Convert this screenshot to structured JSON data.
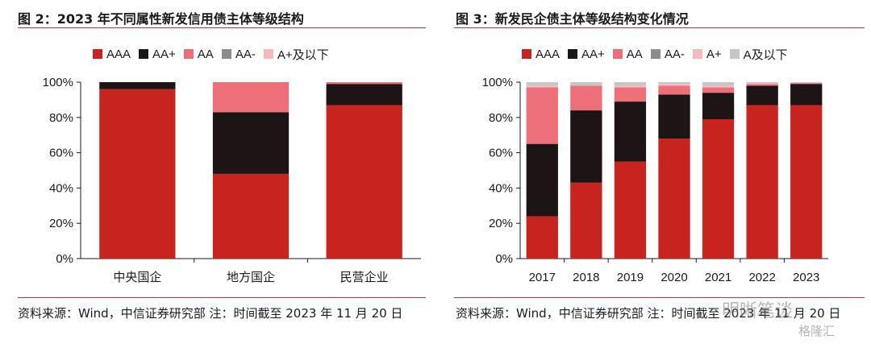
{
  "colors": {
    "AAA": "#c8241f",
    "AA+": "#1c1415",
    "AA": "#ec6f7a",
    "AA-": "#8c8c8c",
    "A+及以下": "#f4b8bd",
    "A+": "#f4b8bd",
    "A及以下": "#c6c6c6",
    "rule": "#b8343a"
  },
  "left": {
    "title": "图 2：2023 年不同属性新发信用债主体等级结构",
    "source": "资料来源：Wind，中信证券研究部 注：时间截至 2023 年 11 月 20 日"
  },
  "right": {
    "title": "图 3：新发民企债主体等级结构变化情况",
    "source": "资料来源：Wind，中信证券研究部 注：时间截至 2023 年 11 月 20 日"
  },
  "watermark": "明晰笔谈",
  "watermark2": "格隆汇",
  "chart_data": [
    {
      "type": "bar",
      "stacked": true,
      "categories": [
        "中央国企",
        "地方国企",
        "民营企业"
      ],
      "series": [
        {
          "name": "AAA",
          "values": [
            96,
            48,
            87
          ]
        },
        {
          "name": "AA+",
          "values": [
            4,
            35,
            12
          ]
        },
        {
          "name": "AA",
          "values": [
            0,
            17,
            1
          ]
        },
        {
          "name": "AA-",
          "values": [
            0,
            0,
            0
          ]
        },
        {
          "name": "A+及以下",
          "values": [
            0,
            0,
            0
          ]
        }
      ],
      "ylim": [
        0,
        100
      ],
      "yticks": [
        "0%",
        "20%",
        "40%",
        "60%",
        "80%",
        "100%"
      ],
      "legend_position": "top"
    },
    {
      "type": "bar",
      "stacked": true,
      "categories": [
        "2017",
        "2018",
        "2019",
        "2020",
        "2021",
        "2022",
        "2023"
      ],
      "series": [
        {
          "name": "AAA",
          "values": [
            24,
            43,
            55,
            68,
            79,
            87,
            87
          ]
        },
        {
          "name": "AA+",
          "values": [
            41,
            41,
            34,
            25,
            15,
            11,
            12
          ]
        },
        {
          "name": "AA",
          "values": [
            32,
            14,
            8,
            5,
            3,
            1,
            0.5
          ]
        },
        {
          "name": "AA-",
          "values": [
            0,
            0,
            0,
            0,
            0,
            0,
            0
          ]
        },
        {
          "name": "A+",
          "values": [
            1,
            0,
            1,
            1,
            1,
            0.5,
            0
          ]
        },
        {
          "name": "A及以下",
          "values": [
            2,
            2,
            2,
            1,
            2,
            0.5,
            0.5
          ]
        }
      ],
      "ylim": [
        0,
        100
      ],
      "yticks": [
        "0%",
        "20%",
        "40%",
        "60%",
        "80%",
        "100%"
      ],
      "legend_position": "top"
    }
  ]
}
